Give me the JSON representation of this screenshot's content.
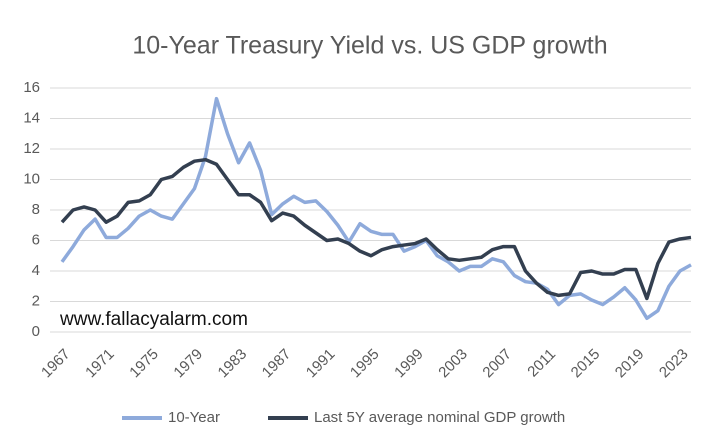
{
  "chart_data": {
    "type": "line",
    "title": "10-Year Treasury Yield vs. US GDP growth",
    "annotations": [
      "www.fallacyalarm.com"
    ],
    "x": [
      1967,
      1968,
      1969,
      1970,
      1971,
      1972,
      1973,
      1974,
      1975,
      1976,
      1977,
      1978,
      1979,
      1980,
      1981,
      1982,
      1983,
      1984,
      1985,
      1986,
      1987,
      1988,
      1989,
      1990,
      1991,
      1992,
      1993,
      1994,
      1995,
      1996,
      1997,
      1998,
      1999,
      2000,
      2001,
      2002,
      2003,
      2004,
      2005,
      2006,
      2007,
      2008,
      2009,
      2010,
      2011,
      2012,
      2013,
      2014,
      2015,
      2016,
      2017,
      2018,
      2019,
      2020,
      2021,
      2022,
      2023,
      2024
    ],
    "series": [
      {
        "name": "10-Year",
        "color": "#8eaadb",
        "values": [
          4.6,
          5.6,
          6.7,
          7.4,
          6.2,
          6.2,
          6.8,
          7.6,
          8.0,
          7.6,
          7.4,
          8.4,
          9.4,
          11.5,
          15.3,
          13.0,
          11.1,
          12.4,
          10.6,
          7.7,
          8.4,
          8.9,
          8.5,
          8.6,
          7.9,
          7.0,
          5.9,
          7.1,
          6.6,
          6.4,
          6.4,
          5.3,
          5.6,
          6.0,
          5.0,
          4.6,
          4.0,
          4.3,
          4.3,
          4.8,
          4.6,
          3.7,
          3.3,
          3.2,
          2.8,
          1.8,
          2.4,
          2.5,
          2.1,
          1.8,
          2.3,
          2.9,
          2.1,
          0.9,
          1.4,
          3.0,
          4.0,
          4.4
        ]
      },
      {
        "name": "Last 5Y average nominal GDP growth",
        "color": "#333f50",
        "values": [
          7.2,
          8.0,
          8.2,
          8.0,
          7.2,
          7.6,
          8.5,
          8.6,
          9.0,
          10.0,
          10.2,
          10.8,
          11.2,
          11.3,
          11.0,
          10.0,
          9.0,
          9.0,
          8.5,
          7.3,
          7.8,
          7.6,
          7.0,
          6.5,
          6.0,
          6.1,
          5.8,
          5.3,
          5.0,
          5.4,
          5.6,
          5.7,
          5.8,
          6.1,
          5.4,
          4.8,
          4.7,
          4.8,
          4.9,
          5.4,
          5.6,
          5.6,
          4.0,
          3.2,
          2.6,
          2.4,
          2.5,
          3.9,
          4.0,
          3.8,
          3.8,
          4.1,
          4.1,
          2.2,
          4.5,
          5.9,
          6.1,
          6.2
        ]
      }
    ],
    "xlim": [
      1967,
      2024
    ],
    "xticks": [
      1967,
      1971,
      1975,
      1979,
      1983,
      1987,
      1991,
      1995,
      1999,
      2003,
      2007,
      2011,
      2015,
      2019,
      2023
    ],
    "ylim": [
      0,
      16
    ],
    "yticks": [
      0,
      2,
      4,
      6,
      8,
      10,
      12,
      14,
      16
    ],
    "grid": true,
    "legend": "bottom"
  }
}
